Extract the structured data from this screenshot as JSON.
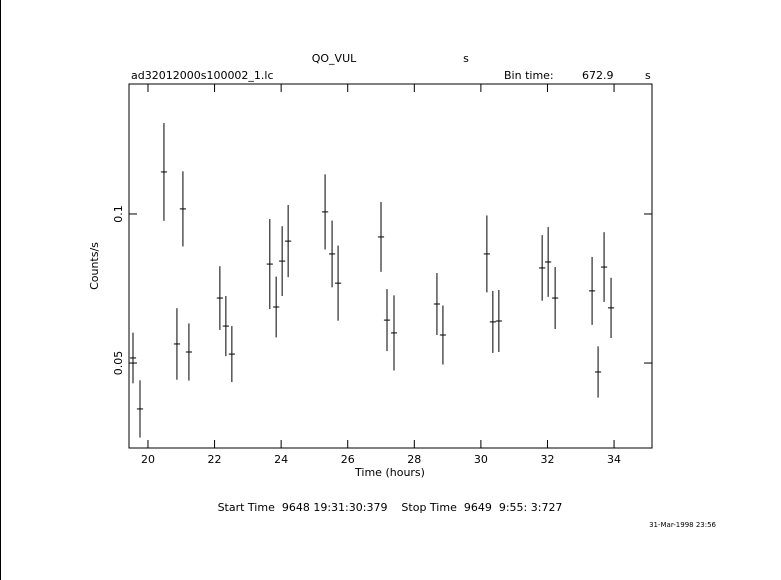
{
  "chart_data": {
    "type": "errorbar",
    "title": "QO_VUL",
    "title_suffix": "s",
    "file": "ad32012000s100002_1.lc",
    "bin_time_label": "Bin time:",
    "bin_time": 672.9,
    "bin_time_unit": "s",
    "xlabel": "Time (hours)",
    "ylabel": "Counts/s",
    "footer": "Start Time  9648 19:31:30:379    Stop Time  9649  9:55: 3:727",
    "date": "31-Mar-1998 23:56",
    "x": [
      19.55,
      19.76,
      20.48,
      20.87,
      21.05,
      21.23,
      22.16,
      22.34,
      22.52,
      23.66,
      23.85,
      24.03,
      24.21,
      25.32,
      25.53,
      25.71,
      27.0,
      27.18,
      27.39,
      28.68,
      28.86,
      30.18,
      30.36,
      30.54,
      31.84,
      32.02,
      32.23,
      33.34,
      33.52,
      33.7,
      33.91
    ],
    "values": [
      0.0517,
      0.0346,
      0.1141,
      0.0564,
      0.1017,
      0.0537,
      0.0718,
      0.0624,
      0.053,
      0.0832,
      0.0688,
      0.0842,
      0.0909,
      0.1007,
      0.0866,
      0.0768,
      0.0923,
      0.0644,
      0.0601,
      0.0698,
      0.0594,
      0.0866,
      0.0638,
      0.0641,
      0.0819,
      0.0839,
      0.0718,
      0.0742,
      0.047,
      0.0822,
      0.0685
    ],
    "errors": [
      0.0085,
      0.0096,
      0.0164,
      0.012,
      0.0126,
      0.0096,
      0.0107,
      0.0101,
      0.0094,
      0.0151,
      0.0102,
      0.0117,
      0.0121,
      0.0126,
      0.0112,
      0.0126,
      0.0117,
      0.0104,
      0.0126,
      0.0104,
      0.0099,
      0.0129,
      0.0104,
      0.0104,
      0.011,
      0.0117,
      0.0104,
      0.0114,
      0.0086,
      0.0117,
      0.0101
    ],
    "xerr": 0.093,
    "color": "#000000",
    "xlim": [
      19.43,
      35.14
    ],
    "ylim": [
      0.0215,
      0.1436
    ],
    "xticks": [
      20,
      22,
      24,
      26,
      28,
      30,
      32,
      34
    ],
    "yticks": [
      0.05,
      0.1
    ]
  }
}
